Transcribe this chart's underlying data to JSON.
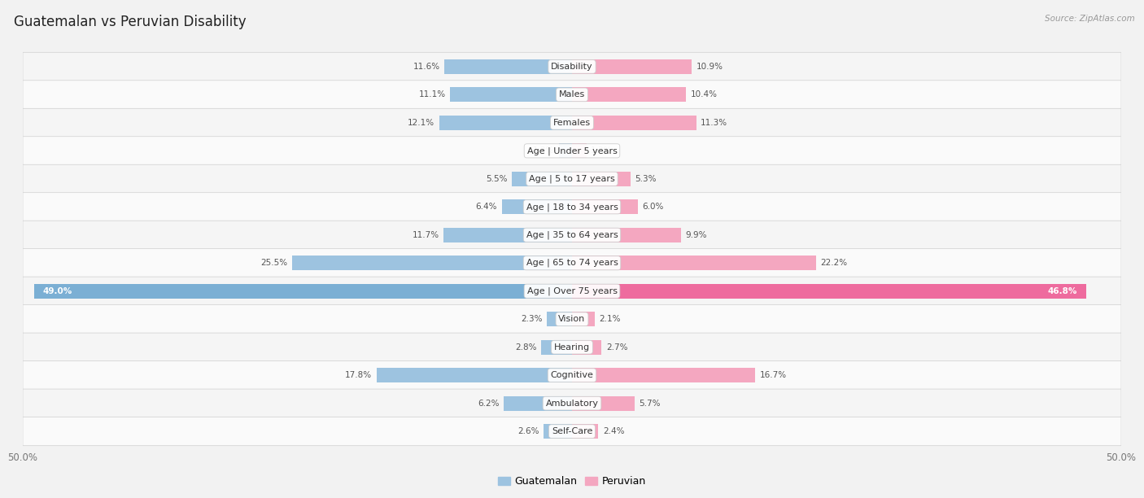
{
  "title": "Guatemalan vs Peruvian Disability",
  "source": "Source: ZipAtlas.com",
  "categories": [
    "Disability",
    "Males",
    "Females",
    "Age | Under 5 years",
    "Age | 5 to 17 years",
    "Age | 18 to 34 years",
    "Age | 35 to 64 years",
    "Age | 65 to 74 years",
    "Age | Over 75 years",
    "Vision",
    "Hearing",
    "Cognitive",
    "Ambulatory",
    "Self-Care"
  ],
  "guatemalan": [
    11.6,
    11.1,
    12.1,
    1.2,
    5.5,
    6.4,
    11.7,
    25.5,
    49.0,
    2.3,
    2.8,
    17.8,
    6.2,
    2.6
  ],
  "peruvian": [
    10.9,
    10.4,
    11.3,
    1.3,
    5.3,
    6.0,
    9.9,
    22.2,
    46.8,
    2.1,
    2.7,
    16.7,
    5.7,
    2.4
  ],
  "max_val": 50.0,
  "guatemalan_color": "#9dc3e0",
  "peruvian_color": "#f4a7c0",
  "guatemalan_color_special": "#7bafd4",
  "peruvian_color_special": "#ee6b9e",
  "bg_color": "#f2f2f2",
  "row_bg_light": "#f5f5f5",
  "row_bg_white": "#fafafa",
  "bar_height": 0.52,
  "title_fontsize": 12,
  "label_fontsize": 8,
  "value_fontsize": 7.5,
  "legend_fontsize": 9,
  "source_fontsize": 7.5
}
